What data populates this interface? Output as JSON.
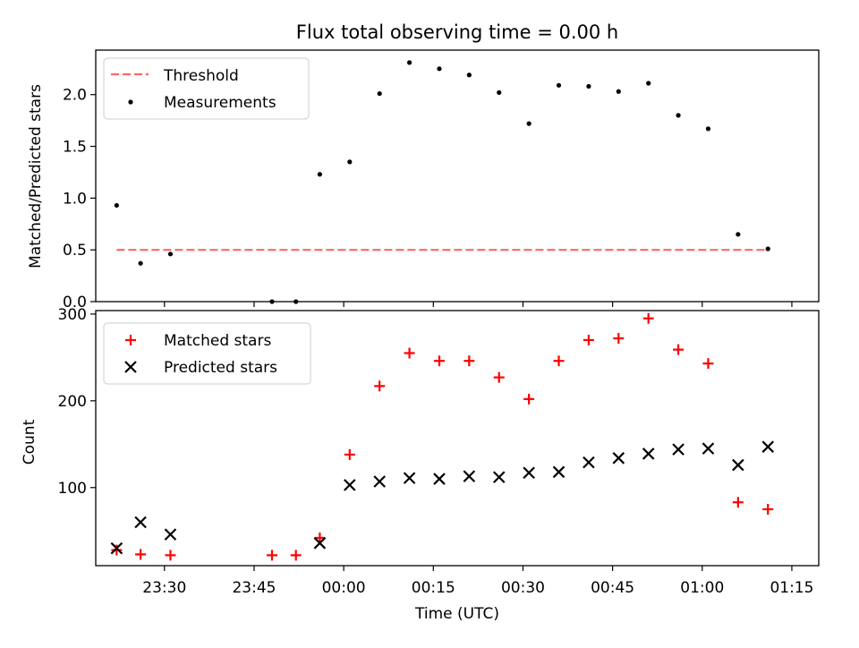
{
  "chart_data": [
    {
      "type": "scatter",
      "title": "Flux total observing time = 0.00 h",
      "xlabel": "",
      "ylabel": "Matched/Predicted stars",
      "ylim": [
        0,
        2.43
      ],
      "yticks": [
        "0.0",
        "0.5",
        "1.0",
        "1.5",
        "2.0"
      ],
      "legend": {
        "placement": "upper-left",
        "entries": [
          "Threshold",
          "Measurements"
        ]
      },
      "threshold": {
        "name": "Threshold",
        "value": 0.5,
        "x_range": [
          "23:22",
          "01:11"
        ],
        "color": "#ff6666"
      },
      "series": [
        {
          "name": "Measurements",
          "color": "#000000",
          "points": [
            {
              "x": "23:22",
              "y": 0.93
            },
            {
              "x": "23:26",
              "y": 0.37
            },
            {
              "x": "23:31",
              "y": 0.46
            },
            {
              "x": "23:48",
              "y": 0.0
            },
            {
              "x": "23:52",
              "y": 0.0
            },
            {
              "x": "23:56",
              "y": 1.23
            },
            {
              "x": "00:01",
              "y": 1.35
            },
            {
              "x": "00:06",
              "y": 2.01
            },
            {
              "x": "00:11",
              "y": 2.31
            },
            {
              "x": "00:16",
              "y": 2.25
            },
            {
              "x": "00:21",
              "y": 2.19
            },
            {
              "x": "00:26",
              "y": 2.02
            },
            {
              "x": "00:31",
              "y": 1.72
            },
            {
              "x": "00:36",
              "y": 2.09
            },
            {
              "x": "00:41",
              "y": 2.08
            },
            {
              "x": "00:46",
              "y": 2.03
            },
            {
              "x": "00:51",
              "y": 2.11
            },
            {
              "x": "00:56",
              "y": 1.8
            },
            {
              "x": "01:01",
              "y": 1.67
            },
            {
              "x": "01:06",
              "y": 0.65
            },
            {
              "x": "01:11",
              "y": 0.51
            }
          ]
        }
      ]
    },
    {
      "type": "scatter",
      "title": "",
      "xlabel": "Time (UTC)",
      "ylabel": "Count",
      "ylim": [
        10,
        304
      ],
      "yticks": [
        "100",
        "200",
        "300"
      ],
      "xticks": [
        "23:30",
        "23:45",
        "00:00",
        "00:15",
        "00:30",
        "00:45",
        "01:00",
        "01:15"
      ],
      "legend": {
        "placement": "upper-left",
        "entries": [
          "Matched stars",
          "Predicted stars"
        ]
      },
      "series": [
        {
          "name": "Matched stars",
          "marker": "plus",
          "color": "#ff0000",
          "points": [
            {
              "x": "23:22",
              "y": 28
            },
            {
              "x": "23:26",
              "y": 23
            },
            {
              "x": "23:31",
              "y": 22
            },
            {
              "x": "23:48",
              "y": 22
            },
            {
              "x": "23:52",
              "y": 22
            },
            {
              "x": "23:56",
              "y": 42
            },
            {
              "x": "00:01",
              "y": 138
            },
            {
              "x": "00:06",
              "y": 217
            },
            {
              "x": "00:11",
              "y": 255
            },
            {
              "x": "00:16",
              "y": 246
            },
            {
              "x": "00:21",
              "y": 246
            },
            {
              "x": "00:26",
              "y": 227
            },
            {
              "x": "00:31",
              "y": 202
            },
            {
              "x": "00:36",
              "y": 246
            },
            {
              "x": "00:41",
              "y": 270
            },
            {
              "x": "00:46",
              "y": 272
            },
            {
              "x": "00:51",
              "y": 295
            },
            {
              "x": "00:56",
              "y": 259
            },
            {
              "x": "01:01",
              "y": 243
            },
            {
              "x": "01:06",
              "y": 83
            },
            {
              "x": "01:11",
              "y": 75
            }
          ]
        },
        {
          "name": "Predicted stars",
          "marker": "x",
          "color": "#000000",
          "points": [
            {
              "x": "23:22",
              "y": 30
            },
            {
              "x": "23:26",
              "y": 60
            },
            {
              "x": "23:31",
              "y": 46
            },
            {
              "x": "23:56",
              "y": 36
            },
            {
              "x": "00:01",
              "y": 103
            },
            {
              "x": "00:06",
              "y": 107
            },
            {
              "x": "00:11",
              "y": 111
            },
            {
              "x": "00:16",
              "y": 110
            },
            {
              "x": "00:21",
              "y": 113
            },
            {
              "x": "00:26",
              "y": 112
            },
            {
              "x": "00:31",
              "y": 117
            },
            {
              "x": "00:36",
              "y": 118
            },
            {
              "x": "00:41",
              "y": 129
            },
            {
              "x": "00:46",
              "y": 134
            },
            {
              "x": "00:51",
              "y": 139
            },
            {
              "x": "00:56",
              "y": 144
            },
            {
              "x": "01:01",
              "y": 145
            },
            {
              "x": "01:06",
              "y": 126
            },
            {
              "x": "01:11",
              "y": 147
            }
          ]
        }
      ]
    }
  ]
}
